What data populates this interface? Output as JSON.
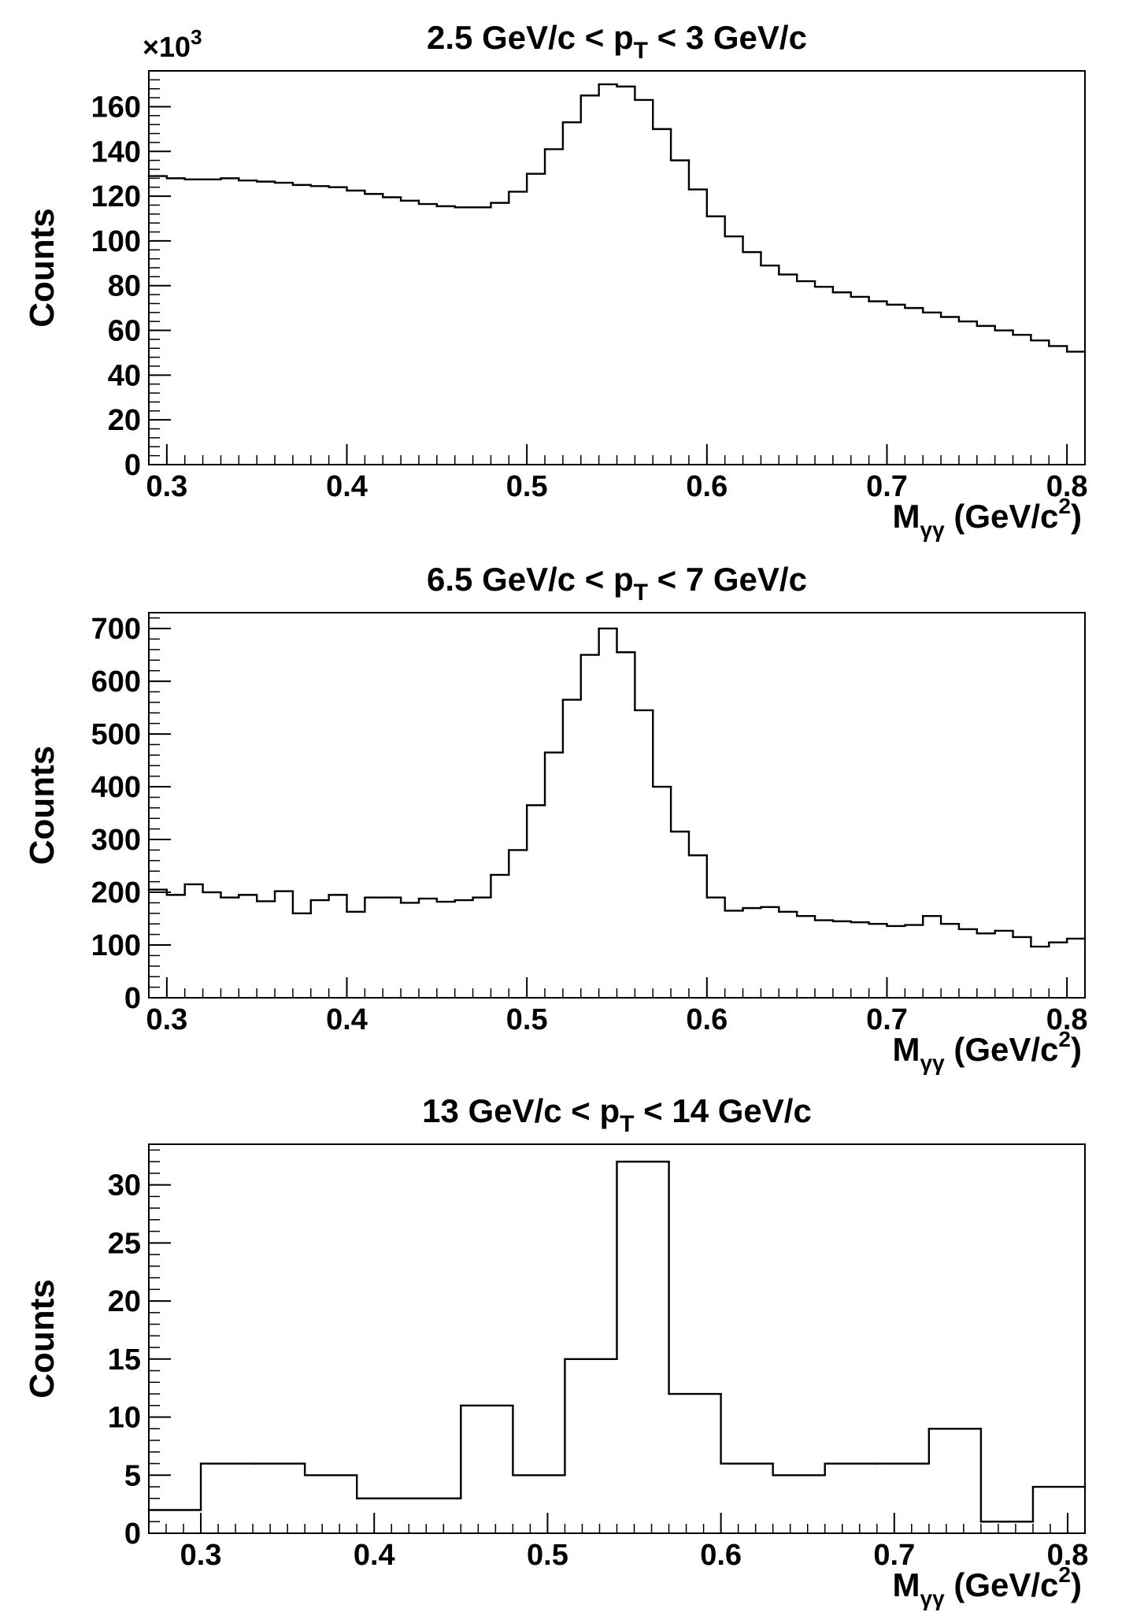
{
  "chart_data": [
    {
      "type": "bar",
      "style": "step-histogram",
      "title": "2.5 GeV/c < p_T < 3 GeV/c",
      "title_parts": {
        "pre": "2.5 GeV/c < p",
        "sub": "T",
        "post": " < 3 GeV/c"
      },
      "ylabel": "Counts",
      "xlabel_parts": {
        "main": "M",
        "sub": "γγ",
        "mid": " (GeV/c",
        "sup": "2",
        "end": ")"
      },
      "y_multiplier": "×10",
      "y_multiplier_exp": "3",
      "xlim": [
        0.29,
        0.81
      ],
      "ylim": [
        0,
        176
      ],
      "xticks": [
        "0.3",
        "0.4",
        "0.5",
        "0.6",
        "0.7",
        "0.8"
      ],
      "xtick_values": [
        0.3,
        0.4,
        0.5,
        0.6,
        0.7,
        0.8
      ],
      "yticks": [
        "0",
        "20",
        "40",
        "60",
        "80",
        "100",
        "120",
        "140",
        "160"
      ],
      "ytick_values": [
        0,
        20,
        40,
        60,
        80,
        100,
        120,
        140,
        160
      ],
      "bin_edges": [
        0.29,
        0.3,
        0.31,
        0.32,
        0.33,
        0.34,
        0.35,
        0.36,
        0.37,
        0.38,
        0.39,
        0.4,
        0.41,
        0.42,
        0.43,
        0.44,
        0.45,
        0.46,
        0.47,
        0.48,
        0.49,
        0.5,
        0.51,
        0.52,
        0.53,
        0.54,
        0.55,
        0.56,
        0.57,
        0.58,
        0.59,
        0.6,
        0.61,
        0.62,
        0.63,
        0.64,
        0.65,
        0.66,
        0.67,
        0.68,
        0.69,
        0.7,
        0.71,
        0.72,
        0.73,
        0.74,
        0.75,
        0.76,
        0.77,
        0.78,
        0.79,
        0.8,
        0.81
      ],
      "values": [
        129,
        128,
        127.5,
        127.5,
        128,
        127,
        126.5,
        126,
        125,
        124.5,
        124,
        122.5,
        121,
        119.5,
        118,
        116.5,
        115.5,
        115,
        115,
        117,
        122,
        130,
        141,
        153,
        165,
        170,
        169,
        163,
        150,
        136,
        123,
        111,
        102,
        95,
        89,
        85,
        82,
        79.5,
        77,
        75,
        73,
        71.5,
        70,
        68,
        66,
        64,
        62,
        60,
        58,
        55.5,
        53,
        50.5
      ]
    },
    {
      "type": "bar",
      "style": "step-histogram",
      "title": "6.5 GeV/c < p_T < 7 GeV/c",
      "title_parts": {
        "pre": "6.5 GeV/c < p",
        "sub": "T",
        "post": " < 7 GeV/c"
      },
      "ylabel": "Counts",
      "xlabel_parts": {
        "main": "M",
        "sub": "γγ",
        "mid": " (GeV/c",
        "sup": "2",
        "end": ")"
      },
      "xlim": [
        0.29,
        0.81
      ],
      "ylim": [
        0,
        730
      ],
      "xticks": [
        "0.3",
        "0.4",
        "0.5",
        "0.6",
        "0.7",
        "0.8"
      ],
      "xtick_values": [
        0.3,
        0.4,
        0.5,
        0.6,
        0.7,
        0.8
      ],
      "yticks": [
        "0",
        "100",
        "200",
        "300",
        "400",
        "500",
        "600",
        "700"
      ],
      "ytick_values": [
        0,
        100,
        200,
        300,
        400,
        500,
        600,
        700
      ],
      "bin_edges": [
        0.29,
        0.3,
        0.31,
        0.32,
        0.33,
        0.34,
        0.35,
        0.36,
        0.37,
        0.38,
        0.39,
        0.4,
        0.41,
        0.42,
        0.43,
        0.44,
        0.45,
        0.46,
        0.47,
        0.48,
        0.49,
        0.5,
        0.51,
        0.52,
        0.53,
        0.54,
        0.55,
        0.56,
        0.57,
        0.58,
        0.59,
        0.6,
        0.61,
        0.62,
        0.63,
        0.64,
        0.65,
        0.66,
        0.67,
        0.68,
        0.69,
        0.7,
        0.71,
        0.72,
        0.73,
        0.74,
        0.75,
        0.76,
        0.77,
        0.78,
        0.79,
        0.8,
        0.81
      ],
      "values": [
        205,
        195,
        215,
        200,
        190,
        195,
        183,
        202,
        160,
        185,
        195,
        163,
        190,
        190,
        180,
        188,
        182,
        185,
        190,
        233,
        280,
        365,
        465,
        565,
        650,
        700,
        655,
        545,
        400,
        315,
        270,
        190,
        165,
        170,
        172,
        163,
        155,
        147,
        145,
        143,
        140,
        136,
        138,
        155,
        140,
        130,
        122,
        127,
        115,
        97,
        105,
        112
      ]
    },
    {
      "type": "bar",
      "style": "step-histogram",
      "title": "13 GeV/c < p_T < 14 GeV/c",
      "title_parts": {
        "pre": "13 GeV/c < p",
        "sub": "T",
        "post": " < 14 GeV/c"
      },
      "ylabel": "Counts",
      "xlabel_parts": {
        "main": "M",
        "sub": "γγ",
        "mid": " (GeV/c",
        "sup": "2",
        "end": ")"
      },
      "xlim": [
        0.27,
        0.81
      ],
      "ylim": [
        0,
        33.5
      ],
      "xticks": [
        "0.3",
        "0.4",
        "0.5",
        "0.6",
        "0.7",
        "0.8"
      ],
      "xtick_values": [
        0.3,
        0.4,
        0.5,
        0.6,
        0.7,
        0.8
      ],
      "yticks": [
        "0",
        "5",
        "10",
        "15",
        "20",
        "25",
        "30"
      ],
      "ytick_values": [
        0,
        5,
        10,
        15,
        20,
        25,
        30
      ],
      "bin_edges": [
        0.27,
        0.3,
        0.33,
        0.36,
        0.39,
        0.42,
        0.45,
        0.48,
        0.51,
        0.54,
        0.57,
        0.6,
        0.63,
        0.66,
        0.69,
        0.72,
        0.75,
        0.78,
        0.81
      ],
      "values": [
        2,
        6,
        6,
        5,
        3,
        3,
        11,
        5,
        15,
        32,
        12,
        6,
        5,
        6,
        6,
        9,
        1,
        4
      ]
    }
  ]
}
